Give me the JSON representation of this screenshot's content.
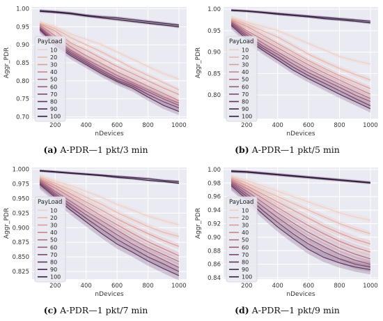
{
  "colors": {
    "plot_bg": "#eaeaf2",
    "grid": "#ffffff",
    "payload_palette": [
      "#f0d0c2",
      "#eab6a7",
      "#de9a93",
      "#cc8186",
      "#b16d7e",
      "#985876",
      "#7b446b",
      "#5e325e",
      "#44234d",
      "#2e1838"
    ]
  },
  "chart_data": [
    {
      "type": "line",
      "caption_label": "(a)",
      "caption_text": "A-PDR—1 pkt/3 min",
      "xlabel": "nDevices",
      "ylabel": "Aggr_PDR",
      "legend_title": "PayLoad",
      "legend_position": "upper-left",
      "grid": true,
      "xlim": [
        50,
        1050
      ],
      "ylim": [
        0.695,
        1.005
      ],
      "xticks": [
        200,
        400,
        600,
        800,
        1000
      ],
      "yticks": [
        0.7,
        0.75,
        0.8,
        0.85,
        0.9,
        0.95,
        1.0
      ],
      "ytick_labels": [
        "0.70",
        "0.75",
        "0.80",
        "0.85",
        "0.90",
        "0.95",
        "1.00"
      ],
      "x": [
        100,
        200,
        300,
        400,
        500,
        600,
        700,
        800,
        900,
        1000
      ],
      "series": [
        {
          "name": "10",
          "values": [
            0.962,
            0.95,
            0.93,
            0.915,
            0.9,
            0.88,
            0.86,
            0.84,
            0.82,
            0.805
          ],
          "band": 0.006
        },
        {
          "name": "20",
          "values": [
            0.96,
            0.945,
            0.92,
            0.9,
            0.88,
            0.858,
            0.835,
            0.815,
            0.795,
            0.775
          ],
          "band": 0.006
        },
        {
          "name": "30",
          "values": [
            0.958,
            0.938,
            0.905,
            0.885,
            0.862,
            0.84,
            0.82,
            0.8,
            0.78,
            0.762
          ],
          "band": 0.007
        },
        {
          "name": "40",
          "values": [
            0.955,
            0.925,
            0.895,
            0.87,
            0.848,
            0.825,
            0.805,
            0.785,
            0.765,
            0.745
          ],
          "band": 0.008
        },
        {
          "name": "50",
          "values": [
            0.95,
            0.915,
            0.885,
            0.86,
            0.838,
            0.815,
            0.795,
            0.775,
            0.755,
            0.738
          ],
          "band": 0.008
        },
        {
          "name": "60",
          "values": [
            0.948,
            0.91,
            0.88,
            0.855,
            0.83,
            0.808,
            0.79,
            0.77,
            0.75,
            0.732
          ],
          "band": 0.009
        },
        {
          "name": "70",
          "values": [
            0.945,
            0.905,
            0.875,
            0.85,
            0.825,
            0.802,
            0.785,
            0.762,
            0.742,
            0.725
          ],
          "band": 0.009
        },
        {
          "name": "80",
          "values": [
            0.942,
            0.9,
            0.87,
            0.845,
            0.82,
            0.798,
            0.78,
            0.755,
            0.732,
            0.715
          ],
          "band": 0.01
        },
        {
          "name": "90",
          "values": [
            0.995,
            0.992,
            0.988,
            0.982,
            0.978,
            0.975,
            0.97,
            0.965,
            0.96,
            0.955
          ],
          "band": 0.004
        },
        {
          "name": "100",
          "values": [
            0.993,
            0.99,
            0.986,
            0.98,
            0.975,
            0.97,
            0.965,
            0.96,
            0.955,
            0.95
          ],
          "band": 0.004
        }
      ]
    },
    {
      "type": "line",
      "caption_label": "(b)",
      "caption_text": "A-PDR—1 pkt/5 min",
      "xlabel": "nDevices",
      "ylabel": "Aggr_PDR",
      "legend_title": "PayLoad",
      "legend_position": "upper-left",
      "grid": true,
      "xlim": [
        50,
        1050
      ],
      "ylim": [
        0.745,
        1.005
      ],
      "xticks": [
        200,
        400,
        600,
        800,
        1000
      ],
      "yticks": [
        0.8,
        0.85,
        0.9,
        0.95,
        1.0
      ],
      "ytick_labels": [
        "0.80",
        "0.85",
        "0.90",
        "0.95",
        "1.00"
      ],
      "x": [
        100,
        200,
        300,
        400,
        500,
        600,
        700,
        800,
        900,
        1000
      ],
      "series": [
        {
          "name": "10",
          "values": [
            0.98,
            0.97,
            0.96,
            0.95,
            0.935,
            0.92,
            0.905,
            0.89,
            0.88,
            0.872
          ],
          "band": 0.005
        },
        {
          "name": "20",
          "values": [
            0.978,
            0.965,
            0.95,
            0.935,
            0.915,
            0.895,
            0.878,
            0.862,
            0.848,
            0.835
          ],
          "band": 0.006
        },
        {
          "name": "30",
          "values": [
            0.975,
            0.96,
            0.94,
            0.92,
            0.9,
            0.88,
            0.862,
            0.845,
            0.83,
            0.815
          ],
          "band": 0.006
        },
        {
          "name": "40",
          "values": [
            0.972,
            0.95,
            0.93,
            0.91,
            0.89,
            0.87,
            0.852,
            0.835,
            0.818,
            0.802
          ],
          "band": 0.007
        },
        {
          "name": "50",
          "values": [
            0.97,
            0.945,
            0.922,
            0.9,
            0.88,
            0.86,
            0.842,
            0.825,
            0.808,
            0.792
          ],
          "band": 0.007
        },
        {
          "name": "60",
          "values": [
            0.968,
            0.94,
            0.915,
            0.895,
            0.872,
            0.852,
            0.835,
            0.818,
            0.8,
            0.785
          ],
          "band": 0.008
        },
        {
          "name": "70",
          "values": [
            0.965,
            0.935,
            0.91,
            0.888,
            0.865,
            0.845,
            0.828,
            0.81,
            0.792,
            0.775
          ],
          "band": 0.008
        },
        {
          "name": "80",
          "values": [
            0.962,
            0.93,
            0.905,
            0.882,
            0.858,
            0.838,
            0.82,
            0.802,
            0.785,
            0.768
          ],
          "band": 0.009
        },
        {
          "name": "90",
          "values": [
            0.998,
            0.996,
            0.993,
            0.99,
            0.987,
            0.984,
            0.981,
            0.978,
            0.975,
            0.972
          ],
          "band": 0.003
        },
        {
          "name": "100",
          "values": [
            0.997,
            0.995,
            0.992,
            0.988,
            0.985,
            0.982,
            0.978,
            0.975,
            0.972,
            0.968
          ],
          "band": 0.003
        }
      ]
    },
    {
      "type": "line",
      "caption_label": "(c)",
      "caption_text": "A-PDR—1 pkt/7 min",
      "xlabel": "nDevices",
      "ylabel": "Aggr_PDR",
      "legend_title": "PayLoad",
      "legend_position": "upper-left",
      "grid": true,
      "xlim": [
        50,
        1050
      ],
      "ylim": [
        0.812,
        1.003
      ],
      "xticks": [
        200,
        400,
        600,
        800,
        1000
      ],
      "yticks": [
        0.825,
        0.85,
        0.875,
        0.9,
        0.925,
        0.95,
        0.975,
        1.0
      ],
      "ytick_labels": [
        "0.825",
        "0.850",
        "0.875",
        "0.900",
        "0.925",
        "0.950",
        "0.975",
        "1.000"
      ],
      "x": [
        100,
        200,
        300,
        400,
        500,
        600,
        700,
        800,
        900,
        1000
      ],
      "series": [
        {
          "name": "10",
          "values": [
            0.988,
            0.98,
            0.972,
            0.962,
            0.952,
            0.94,
            0.93,
            0.92,
            0.912,
            0.905
          ],
          "band": 0.004
        },
        {
          "name": "20",
          "values": [
            0.986,
            0.976,
            0.965,
            0.952,
            0.94,
            0.926,
            0.914,
            0.902,
            0.892,
            0.885
          ],
          "band": 0.005
        },
        {
          "name": "30",
          "values": [
            0.984,
            0.972,
            0.958,
            0.944,
            0.93,
            0.915,
            0.902,
            0.89,
            0.878,
            0.868
          ],
          "band": 0.005
        },
        {
          "name": "40",
          "values": [
            0.982,
            0.968,
            0.952,
            0.936,
            0.92,
            0.905,
            0.89,
            0.876,
            0.864,
            0.852
          ],
          "band": 0.006
        },
        {
          "name": "50",
          "values": [
            0.98,
            0.962,
            0.945,
            0.928,
            0.912,
            0.896,
            0.88,
            0.866,
            0.854,
            0.842
          ],
          "band": 0.006
        },
        {
          "name": "60",
          "values": [
            0.978,
            0.958,
            0.94,
            0.922,
            0.905,
            0.888,
            0.872,
            0.858,
            0.845,
            0.832
          ],
          "band": 0.007
        },
        {
          "name": "70",
          "values": [
            0.976,
            0.955,
            0.935,
            0.916,
            0.898,
            0.88,
            0.865,
            0.85,
            0.838,
            0.825
          ],
          "band": 0.007
        },
        {
          "name": "80",
          "values": [
            0.974,
            0.952,
            0.93,
            0.91,
            0.89,
            0.872,
            0.858,
            0.843,
            0.83,
            0.818
          ],
          "band": 0.008
        },
        {
          "name": "90",
          "values": [
            0.998,
            0.996,
            0.994,
            0.992,
            0.99,
            0.988,
            0.986,
            0.984,
            0.981,
            0.979
          ],
          "band": 0.002
        },
        {
          "name": "100",
          "values": [
            0.997,
            0.995,
            0.993,
            0.991,
            0.989,
            0.986,
            0.984,
            0.981,
            0.979,
            0.976
          ],
          "band": 0.002
        }
      ]
    },
    {
      "type": "line",
      "caption_label": "(d)",
      "caption_text": "A-PDR—1 pkt/9 min",
      "xlabel": "nDevices",
      "ylabel": "Aggr_PDR",
      "legend_title": "PayLoad",
      "legend_position": "upper-left",
      "grid": true,
      "xlim": [
        50,
        1050
      ],
      "ylim": [
        0.838,
        1.003
      ],
      "xticks": [
        200,
        400,
        600,
        800,
        1000
      ],
      "yticks": [
        0.84,
        0.86,
        0.88,
        0.9,
        0.92,
        0.94,
        0.96,
        0.98,
        1.0
      ],
      "ytick_labels": [
        "0.84",
        "0.86",
        "0.88",
        "0.90",
        "0.92",
        "0.94",
        "0.96",
        "0.98",
        "1.00"
      ],
      "x": [
        100,
        200,
        300,
        400,
        500,
        600,
        700,
        800,
        900,
        1000
      ],
      "series": [
        {
          "name": "10",
          "values": [
            0.99,
            0.984,
            0.976,
            0.968,
            0.96,
            0.952,
            0.944,
            0.936,
            0.93,
            0.925
          ],
          "band": 0.004
        },
        {
          "name": "20",
          "values": [
            0.988,
            0.98,
            0.97,
            0.96,
            0.95,
            0.94,
            0.93,
            0.92,
            0.912,
            0.905
          ],
          "band": 0.004
        },
        {
          "name": "30",
          "values": [
            0.986,
            0.976,
            0.964,
            0.952,
            0.94,
            0.928,
            0.916,
            0.906,
            0.897,
            0.89
          ],
          "band": 0.005
        },
        {
          "name": "40",
          "values": [
            0.984,
            0.972,
            0.958,
            0.944,
            0.93,
            0.917,
            0.905,
            0.894,
            0.885,
            0.878
          ],
          "band": 0.005
        },
        {
          "name": "50",
          "values": [
            0.982,
            0.968,
            0.952,
            0.936,
            0.921,
            0.907,
            0.895,
            0.884,
            0.875,
            0.868
          ],
          "band": 0.006
        },
        {
          "name": "60",
          "values": [
            0.98,
            0.964,
            0.946,
            0.929,
            0.913,
            0.898,
            0.886,
            0.875,
            0.866,
            0.86
          ],
          "band": 0.006
        },
        {
          "name": "70",
          "values": [
            0.978,
            0.96,
            0.94,
            0.922,
            0.905,
            0.89,
            0.878,
            0.868,
            0.86,
            0.856
          ],
          "band": 0.007
        },
        {
          "name": "80",
          "values": [
            0.976,
            0.956,
            0.935,
            0.915,
            0.898,
            0.882,
            0.87,
            0.862,
            0.856,
            0.852
          ],
          "band": 0.007
        },
        {
          "name": "90",
          "values": [
            0.998,
            0.997,
            0.995,
            0.993,
            0.991,
            0.989,
            0.987,
            0.985,
            0.983,
            0.981
          ],
          "band": 0.002
        },
        {
          "name": "100",
          "values": [
            0.997,
            0.996,
            0.994,
            0.992,
            0.99,
            0.988,
            0.986,
            0.984,
            0.982,
            0.98
          ],
          "band": 0.002
        }
      ]
    }
  ]
}
